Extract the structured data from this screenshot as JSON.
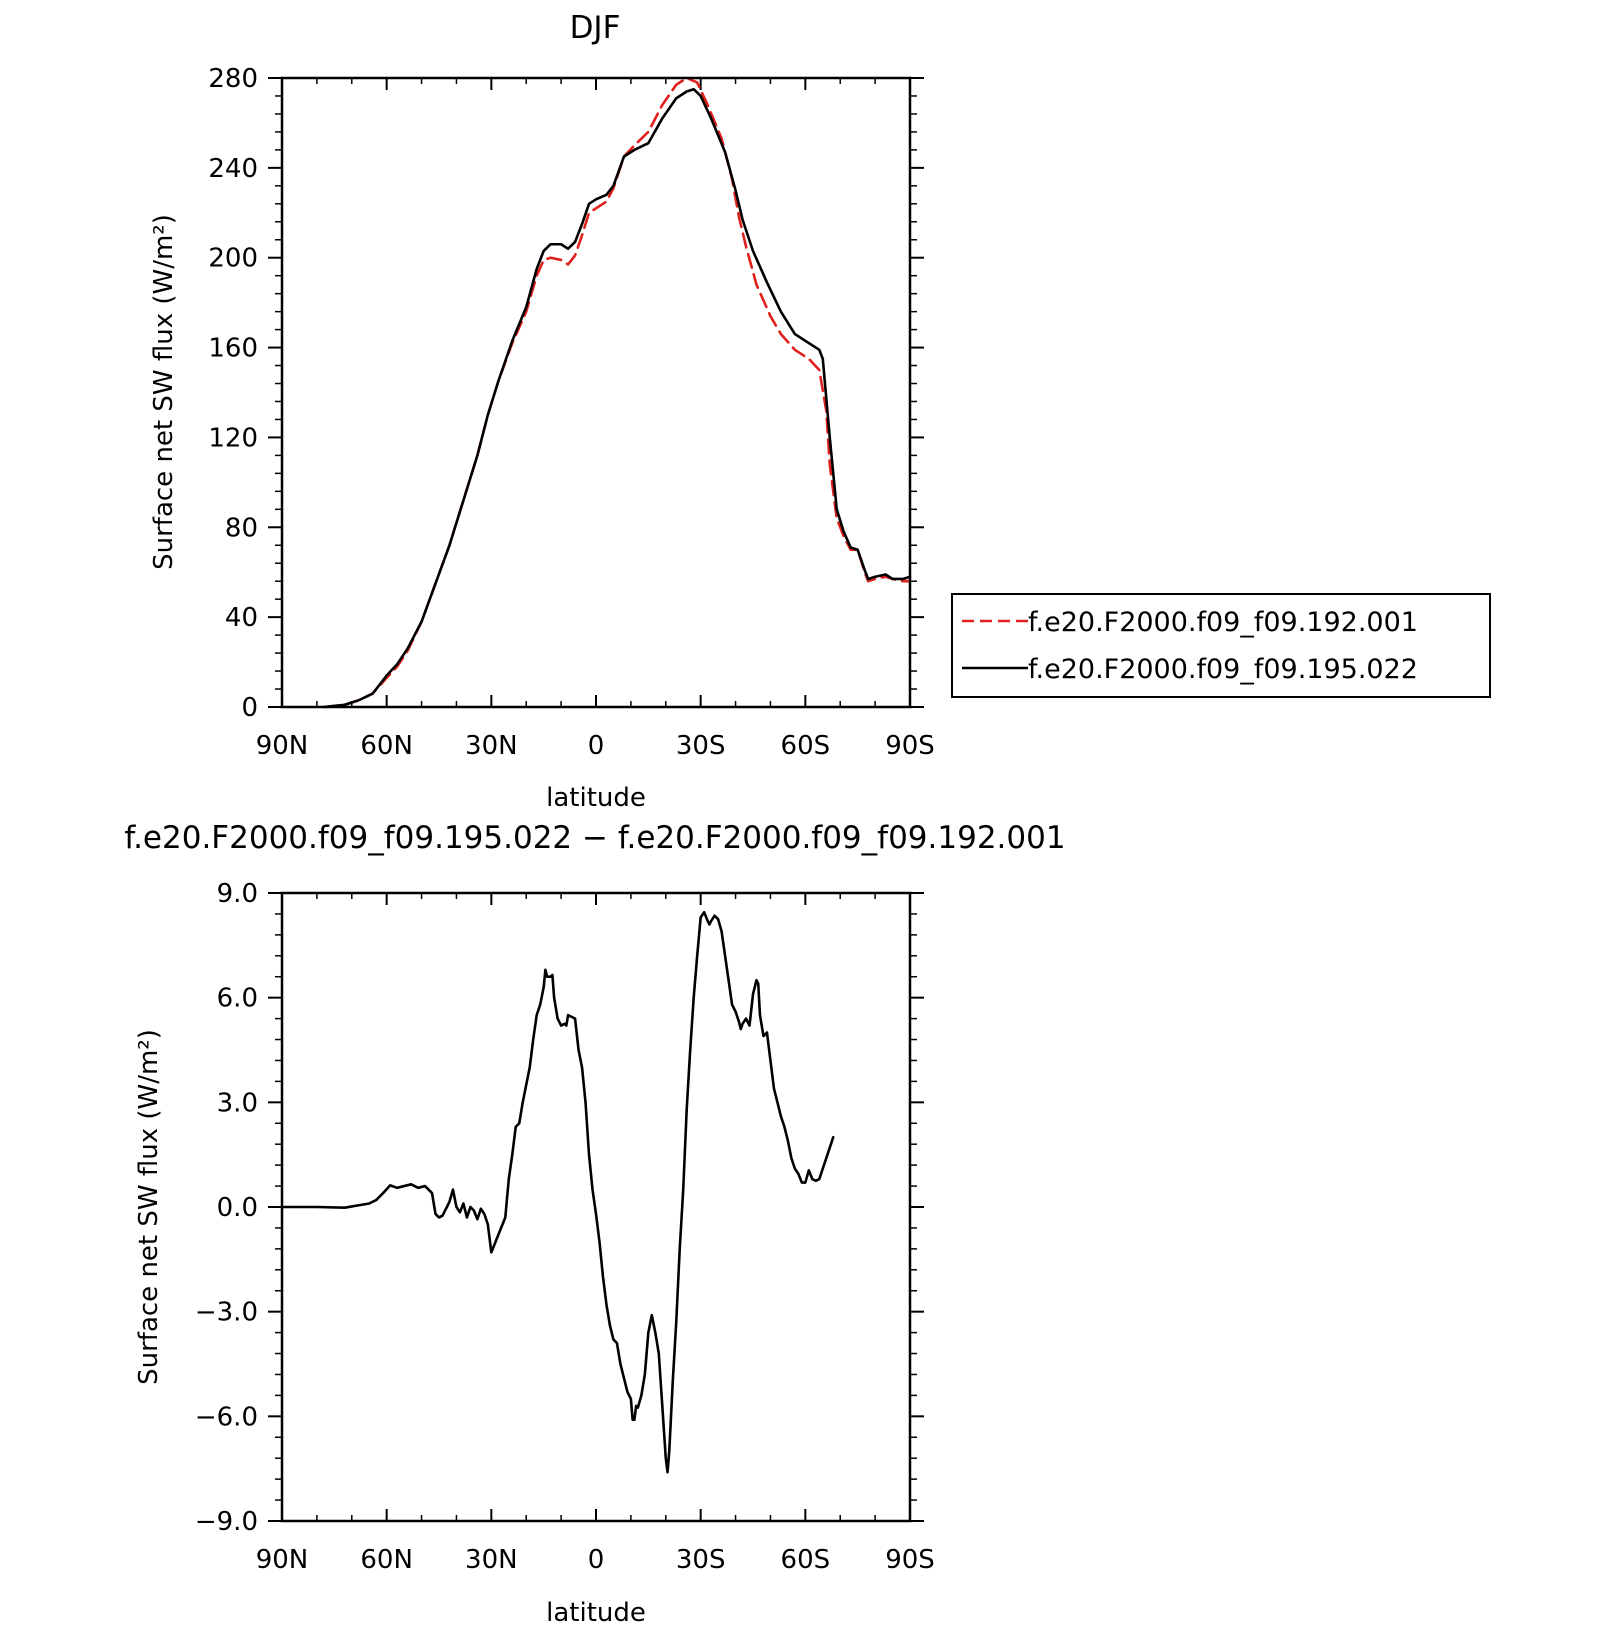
{
  "chart_data": [
    {
      "type": "line",
      "title": "DJF",
      "xlabel": "latitude",
      "ylabel": "Surface net SW flux (W/m²)",
      "xlim": [
        90,
        -90
      ],
      "ylim": [
        0,
        280
      ],
      "x_ticks": [
        {
          "value": 90,
          "label": "90N"
        },
        {
          "value": 60,
          "label": "60N"
        },
        {
          "value": 30,
          "label": "30N"
        },
        {
          "value": 0,
          "label": "0"
        },
        {
          "value": -30,
          "label": "30S"
        },
        {
          "value": -60,
          "label": "60S"
        },
        {
          "value": -90,
          "label": "90S"
        }
      ],
      "y_ticks": [
        {
          "value": 0,
          "label": "0"
        },
        {
          "value": 40,
          "label": "40"
        },
        {
          "value": 80,
          "label": "80"
        },
        {
          "value": 120,
          "label": "120"
        },
        {
          "value": 160,
          "label": "160"
        },
        {
          "value": 200,
          "label": "200"
        },
        {
          "value": 240,
          "label": "240"
        },
        {
          "value": 280,
          "label": "280"
        }
      ],
      "grid": false,
      "legend_position": "right",
      "series": [
        {
          "name": "f.e20.F2000.f09_f09.192.001",
          "color": "#e0201c",
          "dash": true,
          "points": [
            [
              78,
              0
            ],
            [
              72,
              1
            ],
            [
              68,
              3
            ],
            [
              64,
              6
            ],
            [
              60,
              13
            ],
            [
              57,
              18
            ],
            [
              54,
              25
            ],
            [
              50,
              38
            ],
            [
              46,
              55
            ],
            [
              42,
              72
            ],
            [
              38,
              92
            ],
            [
              34,
              112
            ],
            [
              31,
              130
            ],
            [
              28,
              145
            ],
            [
              24,
              162
            ],
            [
              20,
              176
            ],
            [
              17,
              192
            ],
            [
              15,
              199
            ],
            [
              13,
              200
            ],
            [
              10,
              199
            ],
            [
              8,
              197
            ],
            [
              6,
              201
            ],
            [
              4,
              210
            ],
            [
              2,
              220
            ],
            [
              0,
              222
            ],
            [
              -3,
              225
            ],
            [
              -5,
              231
            ],
            [
              -8,
              245
            ],
            [
              -11,
              250
            ],
            [
              -15,
              256
            ],
            [
              -19,
              268
            ],
            [
              -23,
              277
            ],
            [
              -26,
              280
            ],
            [
              -29,
              278
            ],
            [
              -32,
              268
            ],
            [
              -36,
              253
            ],
            [
              -39,
              235
            ],
            [
              -41,
              218
            ],
            [
              -43,
              205
            ],
            [
              -46,
              188
            ],
            [
              -50,
              174
            ],
            [
              -53,
              166
            ],
            [
              -57,
              159
            ],
            [
              -61,
              155
            ],
            [
              -64,
              150
            ],
            [
              -66,
              132
            ],
            [
              -67,
              108
            ],
            [
              -69,
              84
            ],
            [
              -71,
              76
            ],
            [
              -73,
              70
            ],
            [
              -75,
              70
            ],
            [
              -77,
              60
            ],
            [
              -78,
              56
            ],
            [
              -80,
              57
            ],
            [
              -83,
              58
            ],
            [
              -85,
              57
            ],
            [
              -88,
              56
            ],
            [
              -90,
              56
            ]
          ]
        },
        {
          "name": "f.e20.F2000.f09_f09.195.022",
          "color": "#000000",
          "dash": false,
          "points": [
            [
              78,
              0
            ],
            [
              72,
              1
            ],
            [
              68,
              3
            ],
            [
              64,
              6
            ],
            [
              60,
              14
            ],
            [
              57,
              19
            ],
            [
              54,
              26
            ],
            [
              50,
              38
            ],
            [
              46,
              55
            ],
            [
              42,
              72
            ],
            [
              38,
              92
            ],
            [
              34,
              112
            ],
            [
              31,
              130
            ],
            [
              28,
              145
            ],
            [
              24,
              163
            ],
            [
              20,
              178
            ],
            [
              17,
              195
            ],
            [
              15,
              203
            ],
            [
              13,
              206
            ],
            [
              10,
              206
            ],
            [
              8,
              204
            ],
            [
              6,
              207
            ],
            [
              4,
              215
            ],
            [
              2,
              224
            ],
            [
              0,
              226
            ],
            [
              -3,
              228
            ],
            [
              -5,
              232
            ],
            [
              -8,
              245
            ],
            [
              -11,
              248
            ],
            [
              -15,
              251
            ],
            [
              -19,
              262
            ],
            [
              -23,
              271
            ],
            [
              -26,
              274
            ],
            [
              -28,
              275
            ],
            [
              -30,
              272
            ],
            [
              -33,
              262
            ],
            [
              -37,
              247
            ],
            [
              -40,
              230
            ],
            [
              -42,
              217
            ],
            [
              -45,
              203
            ],
            [
              -49,
              189
            ],
            [
              -53,
              176
            ],
            [
              -57,
              166
            ],
            [
              -61,
              162
            ],
            [
              -64,
              159
            ],
            [
              -65,
              155
            ],
            [
              -67,
              120
            ],
            [
              -69,
              88
            ],
            [
              -71,
              78
            ],
            [
              -73,
              71
            ],
            [
              -75,
              70
            ],
            [
              -77,
              61
            ],
            [
              -78,
              57
            ],
            [
              -80,
              58
            ],
            [
              -83,
              59
            ],
            [
              -85,
              57
            ],
            [
              -88,
              57
            ],
            [
              -90,
              58
            ]
          ]
        }
      ]
    },
    {
      "type": "line",
      "title": "f.e20.F2000.f09_f09.195.022 − f.e20.F2000.f09_f09.192.001",
      "xlabel": "latitude",
      "ylabel": "Surface net SW flux (W/m²)",
      "xlim": [
        90,
        -90
      ],
      "ylim": [
        -9.0,
        9.0
      ],
      "x_ticks": [
        {
          "value": 90,
          "label": "90N"
        },
        {
          "value": 60,
          "label": "60N"
        },
        {
          "value": 30,
          "label": "30N"
        },
        {
          "value": 0,
          "label": "0"
        },
        {
          "value": -30,
          "label": "30S"
        },
        {
          "value": -60,
          "label": "60S"
        },
        {
          "value": -90,
          "label": "90S"
        }
      ],
      "y_ticks": [
        {
          "value": -9.0,
          "label": "−9.0"
        },
        {
          "value": -6.0,
          "label": "−6.0"
        },
        {
          "value": -3.0,
          "label": "−3.0"
        },
        {
          "value": 0.0,
          "label": "0.0"
        },
        {
          "value": 3.0,
          "label": "3.0"
        },
        {
          "value": 6.0,
          "label": "6.0"
        },
        {
          "value": 9.0,
          "label": "9.0"
        }
      ],
      "grid": false,
      "series": [
        {
          "color": "#000000",
          "dash": false,
          "points": [
            [
              90,
              0
            ],
            [
              80,
              0
            ],
            [
              72,
              -0.02
            ],
            [
              68,
              0.05
            ],
            [
              65,
              0.1
            ],
            [
              63,
              0.2
            ],
            [
              61,
              0.4
            ],
            [
              59,
              0.62
            ],
            [
              57,
              0.55
            ],
            [
              55,
              0.6
            ],
            [
              53,
              0.65
            ],
            [
              51,
              0.55
            ],
            [
              49,
              0.6
            ],
            [
              47,
              0.4
            ],
            [
              46,
              -0.2
            ],
            [
              45,
              -0.3
            ],
            [
              44,
              -0.25
            ],
            [
              42,
              0.15
            ],
            [
              41,
              0.5
            ],
            [
              40,
              0.0
            ],
            [
              39,
              -0.15
            ],
            [
              38,
              0.1
            ],
            [
              37,
              -0.3
            ],
            [
              36,
              0.0
            ],
            [
              35,
              -0.1
            ],
            [
              34,
              -0.35
            ],
            [
              33,
              -0.05
            ],
            [
              32,
              -0.2
            ],
            [
              31,
              -0.5
            ],
            [
              30,
              -1.3
            ],
            [
              28,
              -0.8
            ],
            [
              26,
              -0.3
            ],
            [
              25,
              0.8
            ],
            [
              24,
              1.5
            ],
            [
              23,
              2.3
            ],
            [
              22,
              2.4
            ],
            [
              21,
              3.0
            ],
            [
              20,
              3.5
            ],
            [
              19,
              4.0
            ],
            [
              18,
              4.8
            ],
            [
              17,
              5.5
            ],
            [
              16,
              5.8
            ],
            [
              15,
              6.3
            ],
            [
              14.5,
              6.8
            ],
            [
              14,
              6.6
            ],
            [
              13,
              6.6
            ],
            [
              12.5,
              6.65
            ],
            [
              12,
              6.0
            ],
            [
              11,
              5.4
            ],
            [
              10,
              5.2
            ],
            [
              9,
              5.25
            ],
            [
              8.5,
              5.2
            ],
            [
              8,
              5.5
            ],
            [
              7,
              5.45
            ],
            [
              6,
              5.4
            ],
            [
              5,
              4.5
            ],
            [
              4,
              4.0
            ],
            [
              3,
              3.0
            ],
            [
              2,
              1.5
            ],
            [
              1,
              0.5
            ],
            [
              0,
              -0.2
            ],
            [
              -1,
              -1.0
            ],
            [
              -2,
              -2.0
            ],
            [
              -3,
              -2.8
            ],
            [
              -4,
              -3.4
            ],
            [
              -5,
              -3.8
            ],
            [
              -6,
              -3.9
            ],
            [
              -7,
              -4.5
            ],
            [
              -8,
              -4.9
            ],
            [
              -9,
              -5.3
            ],
            [
              -10,
              -5.5
            ],
            [
              -10.5,
              -6.1
            ],
            [
              -11,
              -6.1
            ],
            [
              -11.5,
              -5.7
            ],
            [
              -12,
              -5.75
            ],
            [
              -13,
              -5.4
            ],
            [
              -14,
              -4.8
            ],
            [
              -15,
              -3.6
            ],
            [
              -16,
              -3.1
            ],
            [
              -17,
              -3.6
            ],
            [
              -17.5,
              -3.9
            ],
            [
              -18,
              -4.2
            ],
            [
              -19,
              -5.7
            ],
            [
              -20,
              -7.2
            ],
            [
              -20.5,
              -7.6
            ],
            [
              -21,
              -7.0
            ],
            [
              -22,
              -5.0
            ],
            [
              -23,
              -3.3
            ],
            [
              -24,
              -1.2
            ],
            [
              -25,
              0.5
            ],
            [
              -26,
              2.8
            ],
            [
              -27,
              4.5
            ],
            [
              -28,
              6.0
            ],
            [
              -29,
              7.2
            ],
            [
              -30,
              8.3
            ],
            [
              -31,
              8.45
            ],
            [
              -32,
              8.2
            ],
            [
              -32.5,
              8.1
            ],
            [
              -33,
              8.2
            ],
            [
              -34,
              8.35
            ],
            [
              -35,
              8.25
            ],
            [
              -36,
              7.9
            ],
            [
              -37,
              7.2
            ],
            [
              -38,
              6.5
            ],
            [
              -39,
              5.8
            ],
            [
              -40,
              5.6
            ],
            [
              -41,
              5.3
            ],
            [
              -41.5,
              5.1
            ],
            [
              -42,
              5.25
            ],
            [
              -43,
              5.4
            ],
            [
              -44,
              5.2
            ],
            [
              -45,
              6.1
            ],
            [
              -46,
              6.5
            ],
            [
              -46.5,
              6.4
            ],
            [
              -47,
              5.5
            ],
            [
              -48,
              4.9
            ],
            [
              -49,
              5.0
            ],
            [
              -50,
              4.2
            ],
            [
              -51,
              3.4
            ],
            [
              -52,
              3.0
            ],
            [
              -53,
              2.6
            ],
            [
              -54,
              2.3
            ],
            [
              -55,
              1.9
            ],
            [
              -56,
              1.4
            ],
            [
              -57,
              1.1
            ],
            [
              -58,
              0.95
            ],
            [
              -59,
              0.7
            ],
            [
              -60,
              0.7
            ],
            [
              -61,
              1.05
            ],
            [
              -62,
              0.8
            ],
            [
              -63,
              0.75
            ],
            [
              -64,
              0.8
            ],
            [
              -65,
              1.1
            ],
            [
              -66,
              1.4
            ],
            [
              -67,
              1.7
            ],
            [
              -68,
              2.0
            ]
          ]
        }
      ]
    }
  ]
}
